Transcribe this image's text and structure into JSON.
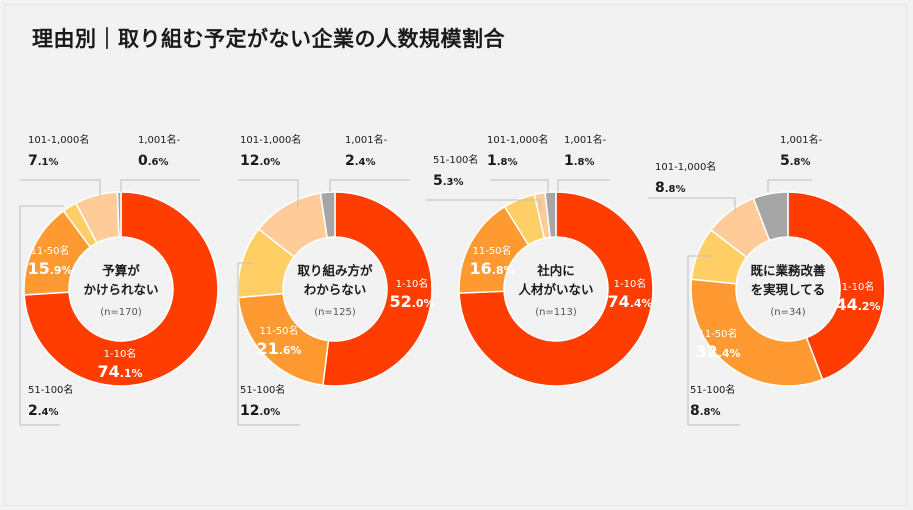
{
  "page": {
    "title": "理由別｜取り組む予定がない企業の人数規模割合"
  },
  "colors": {
    "1-10名": "#ff3d00",
    "11-50名": "#ff9a33",
    "51-100名": "#ffcf66",
    "101-1,000名": "#ffcc99",
    "1,001名-": "#a6a6a6"
  },
  "chart_data": [
    {
      "type": "pie",
      "center_label": [
        "予算が",
        "かけられない"
      ],
      "n_label": "(n=170)",
      "slices": [
        {
          "label": "1-10名",
          "value": 74.1
        },
        {
          "label": "11-50名",
          "value": 15.9
        },
        {
          "label": "51-100名",
          "value": 2.4
        },
        {
          "label": "101-1,000名",
          "value": 7.1
        },
        {
          "label": "1,001名-",
          "value": 0.6
        }
      ]
    },
    {
      "type": "pie",
      "center_label": [
        "取り組み方が",
        "わからない"
      ],
      "n_label": "(n=125)",
      "slices": [
        {
          "label": "1-10名",
          "value": 52.0
        },
        {
          "label": "11-50名",
          "value": 21.6
        },
        {
          "label": "51-100名",
          "value": 12.0
        },
        {
          "label": "101-1,000名",
          "value": 12.0
        },
        {
          "label": "1,001名-",
          "value": 2.4
        }
      ]
    },
    {
      "type": "pie",
      "center_label": [
        "社内に",
        "人材がいない"
      ],
      "n_label": "(n=113)",
      "slices": [
        {
          "label": "1-10名",
          "value": 74.4
        },
        {
          "label": "11-50名",
          "value": 16.8
        },
        {
          "label": "51-100名",
          "value": 5.3
        },
        {
          "label": "101-1,000名",
          "value": 1.8
        },
        {
          "label": "1,001名-",
          "value": 1.8
        }
      ]
    },
    {
      "type": "pie",
      "center_label": [
        "既に業務改善",
        "を実現してる"
      ],
      "n_label": "(n=34)",
      "slices": [
        {
          "label": "1-10名",
          "value": 44.2
        },
        {
          "label": "11-50名",
          "value": 32.4
        },
        {
          "label": "51-100名",
          "value": 8.8
        },
        {
          "label": "101-1,000名",
          "value": 8.8
        },
        {
          "label": "1,001名-",
          "value": 5.8
        }
      ]
    }
  ]
}
